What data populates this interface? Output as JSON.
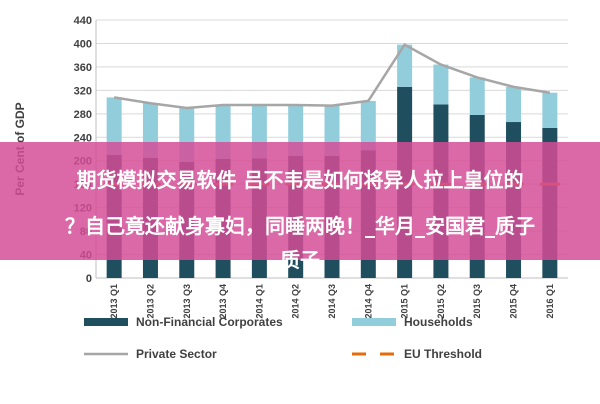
{
  "chart_data": {
    "type": "bar",
    "stacked": true,
    "categories": [
      "2013 Q1",
      "2013 Q2",
      "2013 Q3",
      "2013 Q4",
      "2014 Q1",
      "2014 Q2",
      "2014 Q3",
      "2014 Q4",
      "2015 Q1",
      "2015 Q2",
      "2015 Q3",
      "2015 Q4",
      "2016 Q1"
    ],
    "series": [
      {
        "name": "Non-Financial Corporates",
        "kind": "bar",
        "color": "#1f4e5f",
        "values": [
          210,
          205,
          198,
          203,
          204,
          208,
          208,
          218,
          326,
          296,
          278,
          266,
          256
        ]
      },
      {
        "name": "Households",
        "kind": "bar",
        "color": "#92cddc",
        "values": [
          98,
          93,
          92,
          92,
          91,
          87,
          86,
          84,
          72,
          68,
          64,
          60,
          60
        ]
      },
      {
        "name": "Private Sector",
        "kind": "line",
        "color": "#a6a6a6",
        "values": [
          308,
          298,
          290,
          295,
          295,
          295,
          294,
          302,
          398,
          364,
          342,
          326,
          316
        ]
      },
      {
        "name": "EU Threshold",
        "kind": "dashed",
        "color": "#e46c0a",
        "values": [
          160,
          160,
          160,
          160,
          160,
          160,
          160,
          160,
          160,
          160,
          160,
          160,
          160
        ]
      }
    ],
    "ylabel": "Per Cent of GDP",
    "ylim": [
      0,
      440
    ],
    "yticks": [
      0,
      40,
      80,
      120,
      160,
      200,
      240,
      280,
      320,
      360,
      400,
      440
    ],
    "grid": true,
    "legend": "bottom"
  },
  "overlay": {
    "lines": [
      "期货模拟交易软件 吕不韦是如何将异人拉上皇位的",
      "？自己竟还献身寡妇，同睡两晚！_华月_安国君_质子",
      "质子"
    ],
    "color": "#d54c96"
  }
}
